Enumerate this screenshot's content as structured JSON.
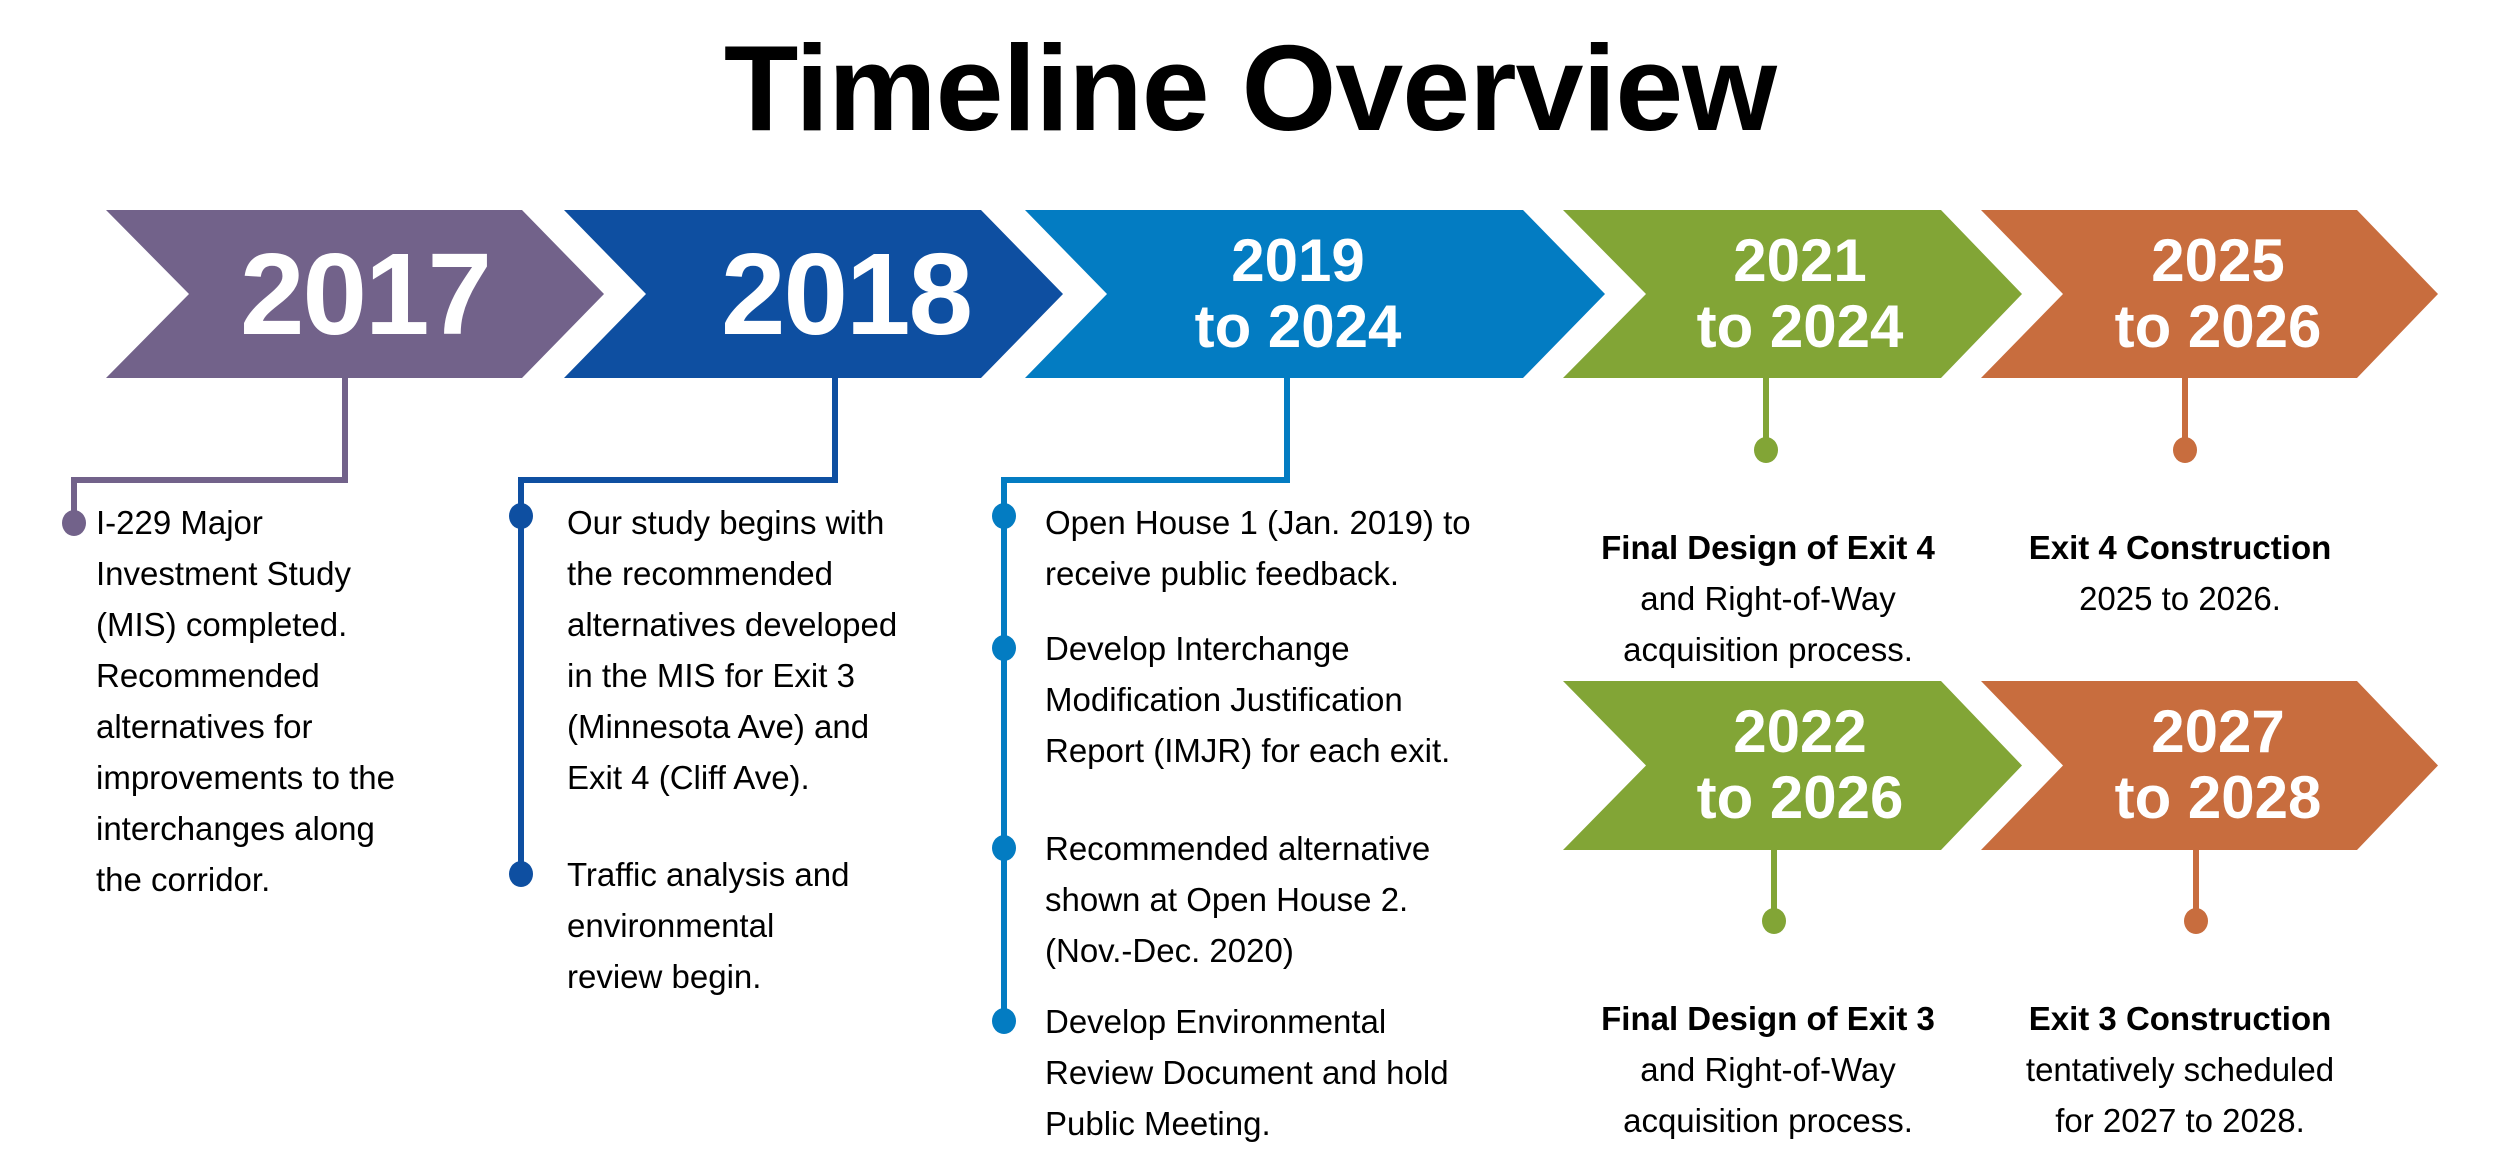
{
  "title": "Timeline Overview",
  "colors": {
    "purple": "#72628a",
    "dark_blue": "#0e4fa1",
    "blue": "#037cc2",
    "green": "#82a536",
    "orange": "#c86d3e"
  },
  "phases": [
    {
      "label": "2017",
      "items": [
        "I-229 Major\nInvestment Study\n(MIS) completed.\nRecommended\nalternatives for\nimprovements to the\ninterchanges along\nthe corridor."
      ]
    },
    {
      "label": "2018",
      "items": [
        "Our study begins with\nthe recommended\nalternatives developed\nin the MIS for Exit 3\n(Minnesota Ave) and\nExit 4 (Cliff Ave).",
        "Traffic analysis and\nenvironmental\nreview begin."
      ]
    },
    {
      "label": "2019\nto 2024",
      "items": [
        "Open House 1 (Jan. 2019) to\nreceive public feedback.",
        "Develop Interchange\nModification Justification\nReport (IMJR) for each exit.",
        "Recommended alternative\nshown at Open House 2.\n(Nov.-Dec. 2020)",
        "Develop Environmental\nReview Document and hold\nPublic Meeting."
      ]
    },
    {
      "label": "2021\nto 2024",
      "heading": "Final Design of Exit 4",
      "text": "and Right-of-Way\nacquisition process."
    },
    {
      "label": "2025\nto 2026",
      "heading": "Exit 4 Construction",
      "text": "2025 to 2026."
    },
    {
      "label": "2022\nto 2026",
      "heading": "Final Design of Exit 3",
      "text": "and Right-of-Way\nacquisition process."
    },
    {
      "label": "2027\nto 2028",
      "heading": "Exit 3 Construction",
      "text": "tentatively scheduled\nfor 2027 to 2028."
    }
  ]
}
